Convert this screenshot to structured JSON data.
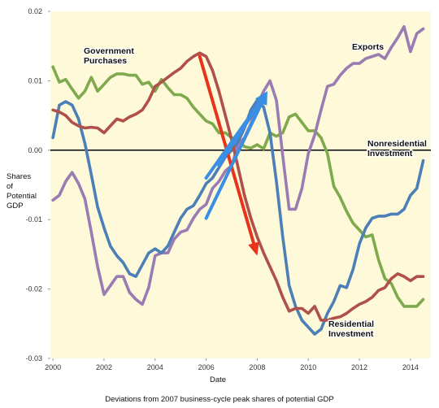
{
  "chart_data": {
    "type": "line",
    "xlabel": "Date",
    "ylabel_lines": [
      "Shares",
      "of",
      "Potential",
      "GDP"
    ],
    "caption": "Deviations from 2007 business-cycle peak shares of potential GDP",
    "xlim": [
      1999.9,
      2014.8
    ],
    "ylim": [
      -0.03,
      0.02
    ],
    "x_ticks": [
      2000,
      2002,
      2004,
      2006,
      2008,
      2010,
      2012,
      2014
    ],
    "y_ticks": [
      0.02,
      0.01,
      0.0,
      -0.01,
      -0.02,
      -0.03
    ],
    "y_tick_labels": [
      "0.02",
      "0.01",
      "0.00",
      "-0.01",
      "-0.02",
      "-0.03"
    ],
    "background_color": "#fdf9d9",
    "zero_line_color": "#000000",
    "grid": false,
    "series": [
      {
        "name": "Government Purchases",
        "color": "#7eaa4d",
        "x": [
          2000.0,
          2000.25,
          2000.5,
          2000.75,
          2001.0,
          2001.25,
          2001.5,
          2001.75,
          2002.0,
          2002.25,
          2002.5,
          2002.75,
          2003.0,
          2003.25,
          2003.5,
          2003.75,
          2004.0,
          2004.25,
          2004.5,
          2004.75,
          2005.0,
          2005.25,
          2005.5,
          2005.75,
          2006.0,
          2006.25,
          2006.5,
          2006.75,
          2007.0,
          2007.25,
          2007.5,
          2007.75,
          2008.0,
          2008.25,
          2008.5,
          2008.75,
          2009.0,
          2009.25,
          2009.5,
          2009.75,
          2010.0,
          2010.25,
          2010.5,
          2010.75,
          2011.0,
          2011.25,
          2011.5,
          2011.75,
          2012.0,
          2012.25,
          2012.5,
          2012.75,
          2013.0,
          2013.25,
          2013.5,
          2013.75,
          2014.0,
          2014.25,
          2014.5
        ],
        "y": [
          0.012,
          0.0098,
          0.0102,
          0.0088,
          0.0075,
          0.0085,
          0.0105,
          0.0085,
          0.0095,
          0.0105,
          0.011,
          0.011,
          0.0108,
          0.0108,
          0.0095,
          0.0098,
          0.0085,
          0.0102,
          0.009,
          0.008,
          0.008,
          0.0075,
          0.0062,
          0.0052,
          0.0042,
          0.0038,
          0.0025,
          0.0025,
          0.0018,
          0.0015,
          0.0005,
          0.0003,
          0.0008,
          0.0002,
          0.0025,
          0.002,
          0.0025,
          0.0048,
          0.0052,
          0.004,
          0.0028,
          0.0028,
          0.0018,
          -0.0005,
          -0.0052,
          -0.0068,
          -0.0088,
          -0.0105,
          -0.0115,
          -0.0125,
          -0.0122,
          -0.0158,
          -0.0185,
          -0.0192,
          -0.0212,
          -0.0225,
          -0.0225,
          -0.0225,
          -0.0215
        ]
      },
      {
        "name": "Exports",
        "color": "#9a7cb3",
        "x": [
          2000.0,
          2000.25,
          2000.5,
          2000.75,
          2001.0,
          2001.25,
          2001.5,
          2001.75,
          2002.0,
          2002.25,
          2002.5,
          2002.75,
          2003.0,
          2003.25,
          2003.5,
          2003.75,
          2004.0,
          2004.25,
          2004.5,
          2004.75,
          2005.0,
          2005.25,
          2005.5,
          2005.75,
          2006.0,
          2006.25,
          2006.5,
          2006.75,
          2007.0,
          2007.25,
          2007.5,
          2007.75,
          2008.0,
          2008.25,
          2008.5,
          2008.75,
          2009.0,
          2009.25,
          2009.5,
          2009.75,
          2010.0,
          2010.25,
          2010.5,
          2010.75,
          2011.0,
          2011.25,
          2011.5,
          2011.75,
          2012.0,
          2012.25,
          2012.5,
          2012.75,
          2013.0,
          2013.25,
          2013.5,
          2013.75,
          2014.0,
          2014.25,
          2014.5
        ],
        "y": [
          -0.0072,
          -0.0065,
          -0.0045,
          -0.0032,
          -0.0048,
          -0.007,
          -0.0118,
          -0.0168,
          -0.0208,
          -0.0195,
          -0.0182,
          -0.0182,
          -0.0205,
          -0.0215,
          -0.0222,
          -0.0198,
          -0.0152,
          -0.0148,
          -0.0148,
          -0.0128,
          -0.0118,
          -0.0115,
          -0.0098,
          -0.0085,
          -0.0078,
          -0.0055,
          -0.0045,
          -0.003,
          -0.0022,
          0.0008,
          0.0018,
          0.0038,
          0.0065,
          0.0085,
          0.01,
          0.0072,
          -0.0008,
          -0.0085,
          -0.0085,
          -0.0055,
          -0.0005,
          0.0022,
          0.0058,
          0.0092,
          0.0095,
          0.0108,
          0.0118,
          0.0125,
          0.0125,
          0.0132,
          0.0135,
          0.0138,
          0.0132,
          0.0148,
          0.0162,
          0.0178,
          0.0142,
          0.0168,
          0.0175
        ]
      },
      {
        "name": "Nonresidential Investment",
        "color": "#4c7fb7",
        "x": [
          2000.0,
          2000.25,
          2000.5,
          2000.75,
          2001.0,
          2001.25,
          2001.5,
          2001.75,
          2002.0,
          2002.25,
          2002.5,
          2002.75,
          2003.0,
          2003.25,
          2003.5,
          2003.75,
          2004.0,
          2004.25,
          2004.5,
          2004.75,
          2005.0,
          2005.25,
          2005.5,
          2005.75,
          2006.0,
          2006.25,
          2006.5,
          2006.75,
          2007.0,
          2007.25,
          2007.5,
          2007.75,
          2008.0,
          2008.25,
          2008.5,
          2008.75,
          2009.0,
          2009.25,
          2009.5,
          2009.75,
          2010.0,
          2010.25,
          2010.5,
          2010.75,
          2011.0,
          2011.25,
          2011.5,
          2011.75,
          2012.0,
          2012.25,
          2012.5,
          2012.75,
          2013.0,
          2013.25,
          2013.5,
          2013.75,
          2014.0,
          2014.25,
          2014.5
        ],
        "y": [
          0.0018,
          0.0065,
          0.007,
          0.0065,
          0.0045,
          0.001,
          -0.0035,
          -0.0082,
          -0.0112,
          -0.0138,
          -0.0152,
          -0.0162,
          -0.0178,
          -0.0182,
          -0.0165,
          -0.0148,
          -0.0142,
          -0.0148,
          -0.0138,
          -0.0118,
          -0.0098,
          -0.0085,
          -0.008,
          -0.0065,
          -0.0048,
          -0.004,
          -0.0025,
          -0.001,
          0.0,
          0.0012,
          0.0032,
          0.0058,
          0.0072,
          0.0062,
          0.0025,
          -0.0045,
          -0.0125,
          -0.0195,
          -0.0225,
          -0.0245,
          -0.0255,
          -0.0265,
          -0.0258,
          -0.0235,
          -0.0218,
          -0.0195,
          -0.0198,
          -0.0172,
          -0.0135,
          -0.0112,
          -0.0098,
          -0.0095,
          -0.0095,
          -0.0092,
          -0.0092,
          -0.0085,
          -0.0065,
          -0.0055,
          -0.0015
        ]
      },
      {
        "name": "Residential Investment",
        "color": "#b0504a",
        "x": [
          2000.0,
          2000.25,
          2000.5,
          2000.75,
          2001.0,
          2001.25,
          2001.5,
          2001.75,
          2002.0,
          2002.25,
          2002.5,
          2002.75,
          2003.0,
          2003.25,
          2003.5,
          2003.75,
          2004.0,
          2004.25,
          2004.5,
          2004.75,
          2005.0,
          2005.25,
          2005.5,
          2005.75,
          2006.0,
          2006.25,
          2006.5,
          2006.75,
          2007.0,
          2007.25,
          2007.5,
          2007.75,
          2008.0,
          2008.25,
          2008.5,
          2008.75,
          2009.0,
          2009.25,
          2009.5,
          2009.75,
          2010.0,
          2010.25,
          2010.5,
          2010.75,
          2011.0,
          2011.25,
          2011.5,
          2011.75,
          2012.0,
          2012.25,
          2012.5,
          2012.75,
          2013.0,
          2013.25,
          2013.5,
          2013.75,
          2014.0,
          2014.25,
          2014.5
        ],
        "y": [
          0.0058,
          0.0055,
          0.005,
          0.004,
          0.0035,
          0.0032,
          0.0033,
          0.0032,
          0.0025,
          0.0035,
          0.0045,
          0.0042,
          0.0048,
          0.0052,
          0.0058,
          0.0072,
          0.0092,
          0.0098,
          0.0105,
          0.0112,
          0.0118,
          0.0128,
          0.0135,
          0.014,
          0.0135,
          0.0115,
          0.0085,
          0.005,
          0.0015,
          -0.0025,
          -0.0065,
          -0.0098,
          -0.0125,
          -0.0148,
          -0.0168,
          -0.0188,
          -0.0212,
          -0.0232,
          -0.0228,
          -0.0228,
          -0.0235,
          -0.0225,
          -0.0245,
          -0.0245,
          -0.0242,
          -0.024,
          -0.0235,
          -0.0228,
          -0.0222,
          -0.0218,
          -0.0212,
          -0.0202,
          -0.0198,
          -0.0185,
          -0.0178,
          -0.0182,
          -0.0188,
          -0.0182,
          -0.0182
        ]
      }
    ],
    "annotations": [
      {
        "lines": [
          "Government",
          "Purchases"
        ],
        "series": "Government Purchases"
      },
      {
        "lines": [
          "Exports"
        ],
        "series": "Exports"
      },
      {
        "lines": [
          "Nonresidential",
          "Investment"
        ],
        "series": "Nonresidential Investment"
      },
      {
        "lines": [
          "Residential",
          "Investment"
        ],
        "series": "Residential Investment"
      }
    ],
    "overlay_arrows": [
      {
        "color": "#e8341c",
        "from": [
          2005.75,
          0.0135
        ],
        "to": [
          2008.0,
          -0.0152
        ],
        "direction": "down"
      },
      {
        "color": "#3a8fe4",
        "from": [
          2006.0,
          -0.0098
        ],
        "to": [
          2008.4,
          0.0085
        ],
        "direction": "up"
      },
      {
        "color": "#3a8fe4",
        "from": [
          2006.0,
          -0.004
        ],
        "to": [
          2008.4,
          0.0085
        ],
        "direction": "up"
      },
      {
        "color": "#3a8fe4",
        "from": [
          2006.5,
          -0.0022
        ],
        "to": [
          2008.4,
          0.0085
        ],
        "direction": "up"
      }
    ]
  }
}
